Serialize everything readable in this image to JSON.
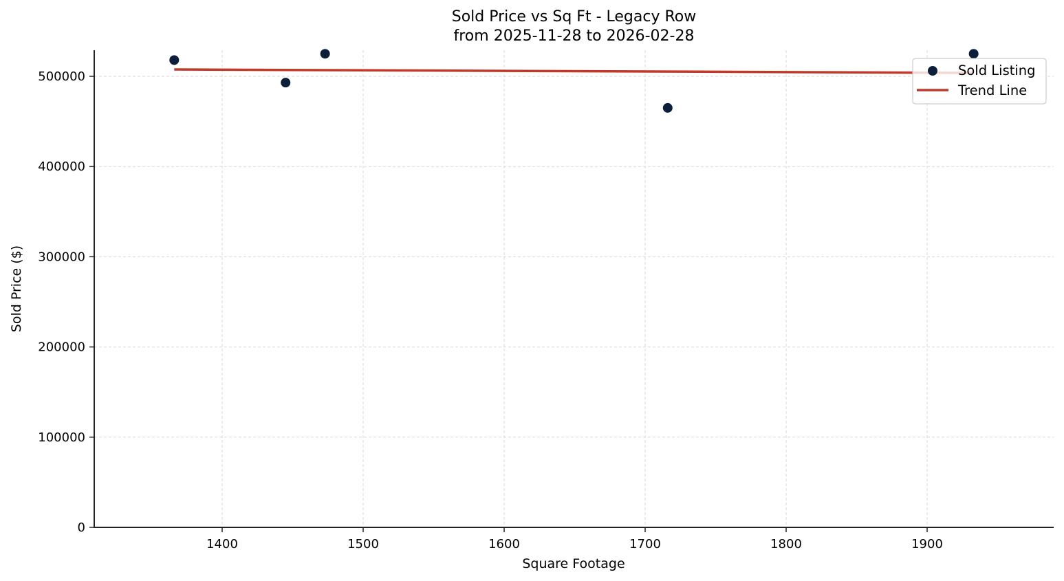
{
  "chart_data": {
    "type": "scatter",
    "title": "Sold Price vs Sq Ft - Legacy Row",
    "subtitle": "from 2025-11-28 to 2026-02-28",
    "xlabel": "Square Footage",
    "ylabel": "Sold Price ($)",
    "xlim": [
      1309,
      1990
    ],
    "ylim": [
      0,
      528000
    ],
    "xticks": [
      1400,
      1500,
      1600,
      1700,
      1800,
      1900
    ],
    "yticks": [
      0,
      100000,
      200000,
      300000,
      400000,
      500000
    ],
    "xtick_labels": [
      "1400",
      "1500",
      "1600",
      "1700",
      "1800",
      "1900"
    ],
    "ytick_labels": [
      "0",
      "100000",
      "200000",
      "300000",
      "400000",
      "500000"
    ],
    "grid": true,
    "legend_position": "upper right",
    "series": [
      {
        "name": "Sold Listing",
        "kind": "scatter",
        "color": "#0b1f3a",
        "points": [
          {
            "x": 1366,
            "y": 518000
          },
          {
            "x": 1445,
            "y": 493000
          },
          {
            "x": 1473,
            "y": 525000
          },
          {
            "x": 1716,
            "y": 465000
          },
          {
            "x": 1933,
            "y": 525000
          }
        ]
      },
      {
        "name": "Trend Line",
        "kind": "line",
        "color": "#c0392b",
        "points": [
          {
            "x": 1366,
            "y": 507600
          },
          {
            "x": 1933,
            "y": 503800
          }
        ]
      }
    ]
  },
  "legend": {
    "items": [
      {
        "label": "Sold Listing"
      },
      {
        "label": "Trend Line"
      }
    ]
  }
}
